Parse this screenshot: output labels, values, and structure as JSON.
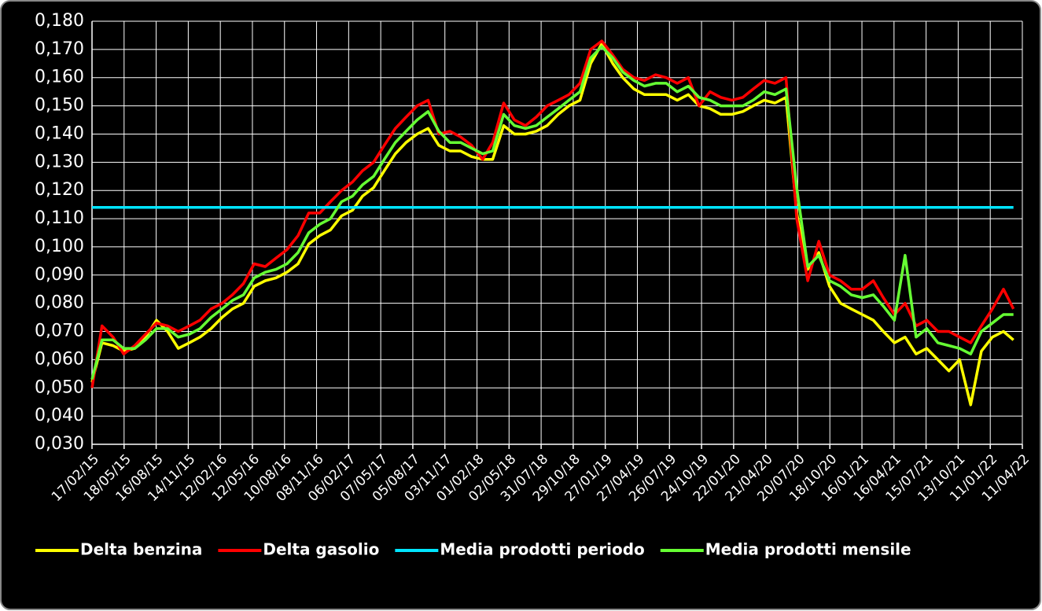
{
  "chart_data": {
    "type": "line",
    "x": [
      "2015-02-17",
      "2015-03-17",
      "2015-04-17",
      "2015-05-17",
      "2015-06-17",
      "2015-07-17",
      "2015-08-17",
      "2015-09-17",
      "2015-10-17",
      "2015-11-17",
      "2015-12-17",
      "2016-01-17",
      "2016-02-17",
      "2016-03-17",
      "2016-04-17",
      "2016-05-17",
      "2016-06-17",
      "2016-07-17",
      "2016-08-17",
      "2016-09-17",
      "2016-10-17",
      "2016-11-17",
      "2016-12-17",
      "2017-01-17",
      "2017-02-17",
      "2017-03-17",
      "2017-04-17",
      "2017-05-17",
      "2017-06-17",
      "2017-07-17",
      "2017-08-17",
      "2017-09-17",
      "2017-10-17",
      "2017-11-17",
      "2017-12-17",
      "2018-01-17",
      "2018-02-17",
      "2018-03-17",
      "2018-04-17",
      "2018-05-17",
      "2018-06-17",
      "2018-07-17",
      "2018-08-17",
      "2018-09-17",
      "2018-10-17",
      "2018-11-17",
      "2018-12-17",
      "2019-01-17",
      "2019-02-17",
      "2019-03-17",
      "2019-04-17",
      "2019-05-17",
      "2019-06-17",
      "2019-07-17",
      "2019-08-17",
      "2019-09-17",
      "2019-10-17",
      "2019-11-17",
      "2019-12-17",
      "2020-01-17",
      "2020-02-17",
      "2020-03-17",
      "2020-04-17",
      "2020-05-17",
      "2020-06-17",
      "2020-07-17",
      "2020-08-17",
      "2020-09-17",
      "2020-10-17",
      "2020-11-17",
      "2020-12-17",
      "2021-01-17",
      "2021-02-17",
      "2021-03-17",
      "2021-04-17",
      "2021-05-17",
      "2021-06-17",
      "2021-07-17",
      "2021-08-17",
      "2021-09-17",
      "2021-10-17",
      "2021-11-17",
      "2021-12-17",
      "2022-01-17",
      "2022-02-17",
      "2022-03-17"
    ],
    "series": [
      {
        "name": "Delta benzina",
        "color": "#ffff00",
        "values": [
          0.052,
          0.066,
          0.065,
          0.063,
          0.064,
          0.068,
          0.074,
          0.07,
          0.064,
          0.066,
          0.068,
          0.071,
          0.075,
          0.078,
          0.08,
          0.086,
          0.088,
          0.089,
          0.091,
          0.094,
          0.101,
          0.104,
          0.106,
          0.111,
          0.113,
          0.118,
          0.121,
          0.127,
          0.133,
          0.137,
          0.14,
          0.142,
          0.136,
          0.134,
          0.134,
          0.132,
          0.131,
          0.131,
          0.143,
          0.14,
          0.14,
          0.141,
          0.143,
          0.147,
          0.15,
          0.152,
          0.165,
          0.172,
          0.165,
          0.16,
          0.156,
          0.154,
          0.154,
          0.154,
          0.152,
          0.154,
          0.15,
          0.149,
          0.147,
          0.147,
          0.148,
          0.15,
          0.152,
          0.151,
          0.153,
          0.112,
          0.092,
          0.098,
          0.086,
          0.08,
          0.078,
          0.076,
          0.074,
          0.07,
          0.066,
          0.068,
          0.062,
          0.064,
          0.06,
          0.056,
          0.06,
          0.044,
          0.063,
          0.068,
          0.07,
          0.067
        ]
      },
      {
        "name": "Delta gasolio",
        "color": "#ff0000",
        "values": [
          0.05,
          0.072,
          0.068,
          0.062,
          0.065,
          0.069,
          0.073,
          0.072,
          0.07,
          0.072,
          0.074,
          0.078,
          0.08,
          0.083,
          0.087,
          0.094,
          0.093,
          0.096,
          0.099,
          0.104,
          0.112,
          0.112,
          0.116,
          0.12,
          0.123,
          0.127,
          0.13,
          0.136,
          0.142,
          0.146,
          0.15,
          0.152,
          0.14,
          0.141,
          0.139,
          0.136,
          0.131,
          0.137,
          0.151,
          0.145,
          0.143,
          0.146,
          0.15,
          0.152,
          0.154,
          0.158,
          0.17,
          0.173,
          0.168,
          0.163,
          0.16,
          0.159,
          0.161,
          0.16,
          0.158,
          0.16,
          0.15,
          0.155,
          0.153,
          0.152,
          0.153,
          0.156,
          0.159,
          0.158,
          0.16,
          0.11,
          0.088,
          0.102,
          0.09,
          0.088,
          0.085,
          0.085,
          0.088,
          0.082,
          0.076,
          0.08,
          0.072,
          0.074,
          0.07,
          0.07,
          0.068,
          0.066,
          0.072,
          0.078,
          0.085,
          0.078
        ]
      },
      {
        "name": "Media prodotti periodo",
        "color": "#00e5ff",
        "values": [
          0.114,
          0.114,
          0.114,
          0.114,
          0.114,
          0.114,
          0.114,
          0.114,
          0.114,
          0.114,
          0.114,
          0.114,
          0.114,
          0.114,
          0.114,
          0.114,
          0.114,
          0.114,
          0.114,
          0.114,
          0.114,
          0.114,
          0.114,
          0.114,
          0.114,
          0.114,
          0.114,
          0.114,
          0.114,
          0.114,
          0.114,
          0.114,
          0.114,
          0.114,
          0.114,
          0.114,
          0.114,
          0.114,
          0.114,
          0.114,
          0.114,
          0.114,
          0.114,
          0.114,
          0.114,
          0.114,
          0.114,
          0.114,
          0.114,
          0.114,
          0.114,
          0.114,
          0.114,
          0.114,
          0.114,
          0.114,
          0.114,
          0.114,
          0.114,
          0.114,
          0.114,
          0.114,
          0.114,
          0.114,
          0.114,
          0.114,
          0.114,
          0.114,
          0.114,
          0.114,
          0.114,
          0.114,
          0.114,
          0.114,
          0.114,
          0.114,
          0.114,
          0.114,
          0.114,
          0.114,
          0.114,
          0.114,
          0.114,
          0.114,
          0.114,
          0.114
        ]
      },
      {
        "name": "Media prodotti mensile",
        "color": "#66ff33",
        "values": [
          0.053,
          0.067,
          0.067,
          0.064,
          0.064,
          0.067,
          0.071,
          0.071,
          0.068,
          0.069,
          0.071,
          0.075,
          0.078,
          0.081,
          0.083,
          0.089,
          0.091,
          0.092,
          0.094,
          0.098,
          0.105,
          0.108,
          0.11,
          0.116,
          0.118,
          0.122,
          0.125,
          0.131,
          0.137,
          0.141,
          0.145,
          0.148,
          0.141,
          0.137,
          0.137,
          0.135,
          0.133,
          0.134,
          0.147,
          0.143,
          0.142,
          0.143,
          0.146,
          0.149,
          0.152,
          0.155,
          0.167,
          0.171,
          0.167,
          0.162,
          0.159,
          0.157,
          0.158,
          0.158,
          0.155,
          0.157,
          0.153,
          0.152,
          0.15,
          0.15,
          0.15,
          0.152,
          0.155,
          0.154,
          0.156,
          0.121,
          0.093,
          0.097,
          0.088,
          0.086,
          0.083,
          0.082,
          0.083,
          0.079,
          0.074,
          0.097,
          0.068,
          0.071,
          0.066,
          0.065,
          0.064,
          0.062,
          0.07,
          0.073,
          0.076,
          0.076
        ]
      }
    ],
    "xlim": [
      "2015-02-17",
      "2022-04-11"
    ],
    "xticks": [
      {
        "value": "2015-02-17",
        "label": "17/02/15"
      },
      {
        "value": "2015-05-18",
        "label": "18/05/15"
      },
      {
        "value": "2015-08-16",
        "label": "16/08/15"
      },
      {
        "value": "2015-11-14",
        "label": "14/11/15"
      },
      {
        "value": "2016-02-12",
        "label": "12/02/16"
      },
      {
        "value": "2016-05-12",
        "label": "12/05/16"
      },
      {
        "value": "2016-08-10",
        "label": "10/08/16"
      },
      {
        "value": "2016-11-08",
        "label": "08/11/16"
      },
      {
        "value": "2017-02-06",
        "label": "06/02/17"
      },
      {
        "value": "2017-05-07",
        "label": "07/05/17"
      },
      {
        "value": "2017-08-05",
        "label": "05/08/17"
      },
      {
        "value": "2017-11-03",
        "label": "03/11/17"
      },
      {
        "value": "2018-02-01",
        "label": "01/02/18"
      },
      {
        "value": "2018-05-02",
        "label": "02/05/18"
      },
      {
        "value": "2018-07-31",
        "label": "31/07/18"
      },
      {
        "value": "2018-10-29",
        "label": "29/10/18"
      },
      {
        "value": "2019-01-27",
        "label": "27/01/19"
      },
      {
        "value": "2019-04-27",
        "label": "27/04/19"
      },
      {
        "value": "2019-07-26",
        "label": "26/07/19"
      },
      {
        "value": "2019-10-24",
        "label": "24/10/19"
      },
      {
        "value": "2020-01-22",
        "label": "22/01/20"
      },
      {
        "value": "2020-04-21",
        "label": "21/04/20"
      },
      {
        "value": "2020-07-20",
        "label": "20/07/20"
      },
      {
        "value": "2020-10-18",
        "label": "18/10/20"
      },
      {
        "value": "2021-01-16",
        "label": "16/01/21"
      },
      {
        "value": "2021-04-16",
        "label": "16/04/21"
      },
      {
        "value": "2021-07-15",
        "label": "15/07/21"
      },
      {
        "value": "2021-10-13",
        "label": "13/10/21"
      },
      {
        "value": "2022-01-11",
        "label": "11/01/22"
      },
      {
        "value": "2022-04-11",
        "label": "11/04/22"
      }
    ],
    "ylim": [
      0.03,
      0.18
    ],
    "yticks": [
      {
        "value": 0.03,
        "label": "0,030"
      },
      {
        "value": 0.04,
        "label": "0,040"
      },
      {
        "value": 0.05,
        "label": "0,050"
      },
      {
        "value": 0.06,
        "label": "0,060"
      },
      {
        "value": 0.07,
        "label": "0,070"
      },
      {
        "value": 0.08,
        "label": "0,080"
      },
      {
        "value": 0.09,
        "label": "0,090"
      },
      {
        "value": 0.1,
        "label": "0,100"
      },
      {
        "value": 0.11,
        "label": "0,110"
      },
      {
        "value": 0.12,
        "label": "0,120"
      },
      {
        "value": 0.13,
        "label": "0,130"
      },
      {
        "value": 0.14,
        "label": "0,140"
      },
      {
        "value": 0.15,
        "label": "0,150"
      },
      {
        "value": 0.16,
        "label": "0,160"
      },
      {
        "value": 0.17,
        "label": "0,170"
      },
      {
        "value": 0.18,
        "label": "0,180"
      }
    ],
    "grid": true,
    "legend": "bottom"
  }
}
